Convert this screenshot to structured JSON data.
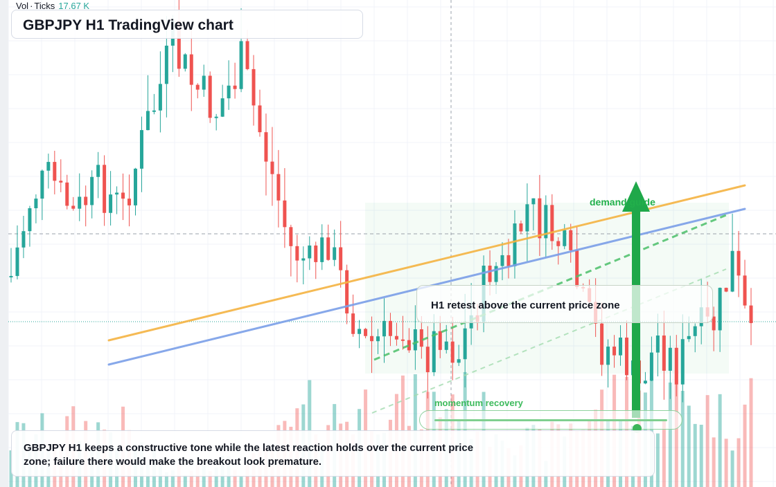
{
  "header": {
    "volume_label": "Vol",
    "volume_source": "Ticks",
    "volume_value": "17.67 K",
    "title": "GBPJPY H1 TradingView chart"
  },
  "annotations": {
    "retest": "H1 retest above the current price zone",
    "demand": "demand guide",
    "momentum": "momentum recovery",
    "momentum_level": 0.87,
    "note": "GBPJPY H1 keeps a constructive tone while the latest reaction holds over the current price zone; failure there would make the breakout look premature."
  },
  "colors": {
    "up": "#26a69a",
    "down": "#ef5350",
    "orange_line": "#f5b342",
    "blue_line": "#7b9fe8",
    "demand": "#1fa84a"
  },
  "chart_data": {
    "type": "candlestick",
    "symbol": "GBPJPY",
    "timeframe": "H1",
    "candle_count": 120,
    "ylim": [
      0,
      704
    ],
    "reference_lines": {
      "dashed_level": 338,
      "current_price": 465
    },
    "anchors": [
      [
        0,
        400,
        80,
        260
      ],
      [
        3,
        290,
        50,
        300
      ],
      [
        6,
        250,
        30,
        290
      ],
      [
        10,
        310,
        40,
        330
      ],
      [
        14,
        270,
        50,
        320
      ],
      [
        18,
        300,
        40,
        320
      ],
      [
        22,
        180,
        60,
        170
      ],
      [
        26,
        70,
        60,
        80
      ],
      [
        29,
        120,
        50,
        130
      ],
      [
        33,
        160,
        50,
        160
      ],
      [
        37,
        95,
        60,
        90
      ],
      [
        41,
        220,
        60,
        190
      ],
      [
        45,
        360,
        50,
        320
      ],
      [
        48,
        380,
        40,
        420
      ],
      [
        51,
        350,
        40,
        380
      ],
      [
        54,
        430,
        50,
        390
      ],
      [
        57,
        500,
        60,
        450
      ],
      [
        60,
        490,
        50,
        500
      ],
      [
        63,
        470,
        40,
        450
      ],
      [
        66,
        520,
        60,
        450
      ],
      [
        69,
        480,
        40,
        450
      ],
      [
        72,
        510,
        60,
        530
      ],
      [
        74,
        460,
        60,
        410
      ],
      [
        77,
        390,
        40,
        360
      ],
      [
        80,
        380,
        40,
        330
      ],
      [
        83,
        300,
        50,
        250
      ],
      [
        86,
        330,
        50,
        230
      ],
      [
        89,
        360,
        40,
        330
      ],
      [
        92,
        440,
        40,
        370
      ],
      [
        95,
        500,
        50,
        450
      ],
      [
        98,
        510,
        40,
        490
      ],
      [
        101,
        560,
        40,
        560
      ],
      [
        104,
        490,
        50,
        460
      ],
      [
        107,
        530,
        50,
        520
      ],
      [
        110,
        480,
        50,
        450
      ],
      [
        113,
        470,
        40,
        420
      ],
      [
        116,
        380,
        60,
        340
      ],
      [
        119,
        500,
        50,
        520
      ]
    ],
    "annotation_lines": [
      {
        "name": "orange_trend",
        "from": [
          157,
          492
        ],
        "to": [
          1075,
          268
        ]
      },
      {
        "name": "blue_trend",
        "from": [
          157,
          527
        ],
        "to": [
          1075,
          302
        ]
      },
      {
        "name": "green_dashed_1",
        "from": [
          540,
          520
        ],
        "to": [
          1048,
          311
        ]
      },
      {
        "name": "green_dashed_2",
        "from": [
          537,
          597
        ],
        "to": [
          1048,
          389
        ]
      }
    ]
  }
}
